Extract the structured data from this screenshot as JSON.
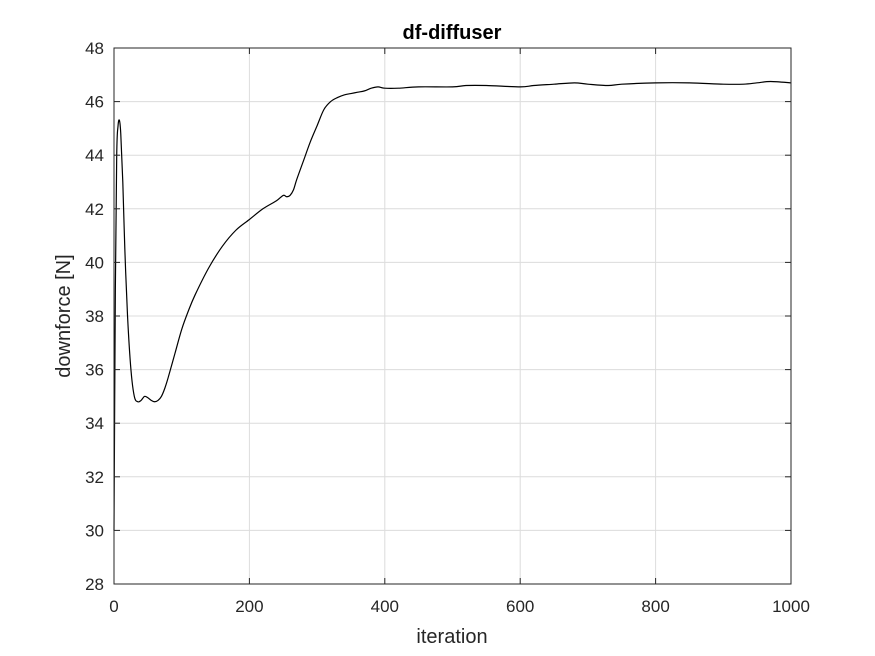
{
  "chart_data": {
    "type": "line",
    "title": "df-diffuser",
    "xlabel": "iteration",
    "ylabel": "downforce [N]",
    "xlim": [
      0,
      1000
    ],
    "ylim": [
      28,
      48
    ],
    "xticks": [
      0,
      200,
      400,
      600,
      800,
      1000
    ],
    "yticks": [
      28,
      30,
      32,
      34,
      36,
      38,
      40,
      42,
      44,
      46,
      48
    ],
    "grid": true,
    "colors": {
      "line": "#000000",
      "grid": "#dcdcdc",
      "axes": "#262626"
    },
    "series": [
      {
        "x": [
          0,
          2,
          4,
          6,
          8,
          10,
          13,
          16,
          20,
          25,
          30,
          35,
          40,
          45,
          50,
          55,
          60,
          65,
          70,
          75,
          80,
          90,
          100,
          110,
          120,
          140,
          160,
          180,
          200,
          220,
          240,
          250,
          255,
          260,
          265,
          270,
          280,
          290,
          300,
          310,
          320,
          330,
          340,
          350,
          360,
          370,
          380,
          390,
          400,
          420,
          450,
          500,
          520,
          550,
          600,
          620,
          650,
          680,
          700,
          730,
          750,
          800,
          850,
          900,
          930,
          950,
          970,
          1000
        ],
        "values": [
          30.0,
          39.0,
          44.0,
          45.1,
          45.3,
          44.8,
          43.0,
          40.5,
          38.0,
          36.0,
          35.0,
          34.8,
          34.85,
          35.0,
          34.95,
          34.85,
          34.8,
          34.85,
          35.0,
          35.3,
          35.7,
          36.6,
          37.5,
          38.2,
          38.8,
          39.8,
          40.6,
          41.2,
          41.6,
          42.0,
          42.3,
          42.5,
          42.45,
          42.5,
          42.7,
          43.1,
          43.8,
          44.5,
          45.1,
          45.7,
          46.0,
          46.15,
          46.25,
          46.3,
          46.35,
          46.4,
          46.5,
          46.55,
          46.5,
          46.5,
          46.55,
          46.55,
          46.6,
          46.6,
          46.55,
          46.6,
          46.65,
          46.7,
          46.65,
          46.6,
          46.65,
          46.7,
          46.7,
          46.65,
          46.65,
          46.7,
          46.75,
          46.7
        ]
      }
    ]
  }
}
